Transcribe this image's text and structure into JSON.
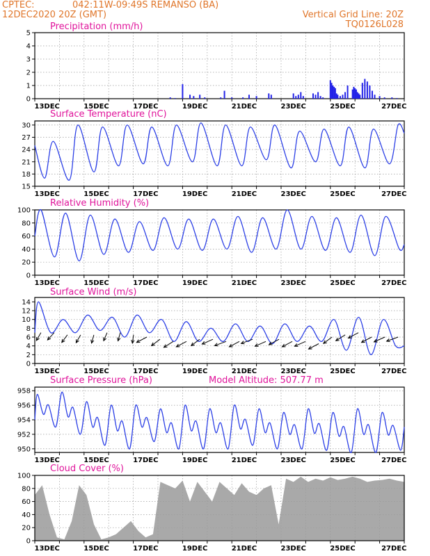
{
  "header": {
    "source": "CPTEC:",
    "location": "042:11W-09:49S  REMANSO (BA)",
    "run": "12DEC2020 20Z (GMT)",
    "grid_note": "Vertical Grid Line: 20Z",
    "model": "TQ0126L028"
  },
  "colors": {
    "header": "#e0762a",
    "panel_title": "#e0149b",
    "line": "#2b3fe6",
    "bar": "#2323e8",
    "cloud": "#a9a9a9"
  },
  "chart_data": [
    {
      "type": "bar",
      "id": "precipitation",
      "title": "Precipitation (mm/h)",
      "xlabel": "",
      "ylabel": "",
      "x_tick_labels": [
        "13DEC",
        "15DEC",
        "17DEC",
        "19DEC",
        "21DEC",
        "23DEC",
        "25DEC",
        "27DEC"
      ],
      "ylim": [
        0,
        5
      ],
      "y_ticks": [
        0,
        1,
        2,
        3,
        4,
        5
      ],
      "grid": true,
      "x_days": [
        5.5,
        5.7,
        6.0,
        6.3,
        6.45,
        6.7,
        6.9,
        7.55,
        7.7,
        8.0,
        8.45,
        8.7,
        9.0,
        9.5,
        9.6,
        10.5,
        10.6,
        10.7,
        10.8,
        10.9,
        11.3,
        11.4,
        11.5,
        11.6,
        11.7,
        12.0,
        12.05,
        12.1,
        12.15,
        12.2,
        12.25,
        12.3,
        12.4,
        12.5,
        12.6,
        12.7,
        12.9,
        12.95,
        13.0,
        13.05,
        13.1,
        13.15,
        13.2,
        13.3,
        13.4,
        13.5,
        13.6,
        13.7,
        13.8,
        14.0,
        14.2,
        14.5,
        14.7
      ],
      "values": [
        0.1,
        0.05,
        1.1,
        0.3,
        0.2,
        0.3,
        0.1,
        0.1,
        0.6,
        0.1,
        0.1,
        0.3,
        0.2,
        0.4,
        0.3,
        0.4,
        0.2,
        0.3,
        0.5,
        0.2,
        0.4,
        0.3,
        0.5,
        0.2,
        0.1,
        1.4,
        1.2,
        1.0,
        0.9,
        0.8,
        0.4,
        0.3,
        0.2,
        0.3,
        0.5,
        1.0,
        0.7,
        0.9,
        0.8,
        0.7,
        0.5,
        0.4,
        0.3,
        1.2,
        1.5,
        1.3,
        1.0,
        0.6,
        0.3,
        0.2,
        0.1,
        0.1,
        0.05
      ]
    },
    {
      "type": "line",
      "id": "temperature",
      "title": "Surface Temperature (nC)",
      "xlabel": "",
      "ylabel": "",
      "x_tick_labels": [
        "13DEC",
        "15DEC",
        "17DEC",
        "19DEC",
        "21DEC",
        "23DEC",
        "25DEC",
        "27DEC"
      ],
      "ylim": [
        15,
        31
      ],
      "y_ticks": [
        15,
        18,
        21,
        24,
        27,
        30
      ],
      "grid": true,
      "daily_max": [
        26.0,
        30.0,
        29.5,
        30.0,
        29.5,
        30.0,
        30.5,
        30.0,
        29.5,
        30.0,
        28.5,
        29.0,
        29.5,
        29.0,
        30.0,
        29.5
      ],
      "daily_min": [
        17.0,
        16.5,
        18.5,
        20.0,
        20.5,
        20.0,
        21.0,
        20.0,
        20.0,
        21.5,
        19.5,
        21.0,
        20.0,
        19.5,
        20.5,
        21.0
      ],
      "start_value": 25.0,
      "end_value": 28.0
    },
    {
      "type": "line",
      "id": "humidity",
      "title": "Relative Humidity (%)",
      "xlabel": "",
      "ylabel": "",
      "x_tick_labels": [
        "13DEC",
        "15DEC",
        "17DEC",
        "19DEC",
        "21DEC",
        "23DEC",
        "25DEC",
        "27DEC"
      ],
      "ylim": [
        0,
        100
      ],
      "y_ticks": [
        0,
        20,
        40,
        60,
        80,
        100
      ],
      "grid": true,
      "daily_max": [
        100,
        95,
        92,
        86,
        82,
        88,
        86,
        86,
        90,
        88,
        100,
        90,
        88,
        92,
        90
      ],
      "daily_min": [
        28,
        22,
        32,
        35,
        38,
        40,
        38,
        40,
        35,
        40,
        40,
        38,
        35,
        30,
        40
      ],
      "start_value": 60,
      "end_value": 47
    },
    {
      "type": "line",
      "id": "wind",
      "title": "Surface Wind (m/s)",
      "xlabel": "",
      "ylabel": "",
      "x_tick_labels": [
        "13DEC",
        "15DEC",
        "17DEC",
        "19DEC",
        "21DEC",
        "23DEC",
        "25DEC",
        "27DEC"
      ],
      "ylim": [
        0,
        15
      ],
      "y_ticks": [
        0,
        2,
        4,
        6,
        8,
        10,
        12,
        14
      ],
      "grid": true,
      "daily_max": [
        14,
        10,
        11,
        10.5,
        11,
        10,
        9.5,
        8,
        9,
        8.5,
        9,
        8.5,
        10,
        10.5,
        10
      ],
      "daily_min": [
        7,
        7,
        7.5,
        6,
        7,
        5,
        5,
        5,
        5,
        4.5,
        5,
        5,
        3,
        2,
        4
      ],
      "start_value": 7,
      "end_value": 4,
      "vectors": [
        [
          7,
          70
        ],
        [
          7,
          60
        ],
        [
          6.5,
          65
        ],
        [
          6.5,
          70
        ],
        [
          6.5,
          80
        ],
        [
          7,
          75
        ],
        [
          7,
          80
        ],
        [
          6.5,
          85
        ],
        [
          6,
          40
        ],
        [
          5.5,
          50
        ],
        [
          5,
          45
        ],
        [
          5,
          40
        ],
        [
          5.5,
          50
        ],
        [
          5.5,
          35
        ],
        [
          5,
          30
        ],
        [
          5,
          40
        ],
        [
          5.5,
          30
        ],
        [
          5,
          35
        ],
        [
          5.5,
          40
        ],
        [
          5,
          40
        ],
        [
          5,
          35
        ],
        [
          4.5,
          40
        ],
        [
          6,
          50
        ],
        [
          6.5,
          45
        ],
        [
          7,
          40
        ],
        [
          6,
          40
        ],
        [
          6,
          35
        ],
        [
          6,
          30
        ]
      ]
    },
    {
      "type": "line",
      "id": "pressure",
      "title": "Surface Pressure (hPa)",
      "annotation": "Model Altitude: 507.77 m",
      "xlabel": "",
      "ylabel": "",
      "x_tick_labels": [
        "13DEC",
        "15DEC",
        "17DEC",
        "19DEC",
        "21DEC",
        "23DEC",
        "25DEC",
        "27DEC"
      ],
      "ylim": [
        949.5,
        958.5
      ],
      "y_ticks": [
        950,
        952,
        954,
        956,
        958
      ],
      "grid": true,
      "daily_high": [
        957.5,
        957.8,
        956.5,
        956.0,
        956.0,
        955.5,
        956.0,
        955.5,
        956.0,
        955.5,
        955.0,
        955.5,
        955.0,
        955.5,
        955.0
      ],
      "daily_low": [
        953.0,
        952.0,
        950.5,
        950.0,
        951.0,
        950.0,
        950.0,
        950.0,
        950.5,
        950.0,
        950.0,
        949.8,
        949.5,
        949.5,
        949.8
      ],
      "start_value": 954.0,
      "end_value": 953.0
    },
    {
      "type": "area",
      "id": "cloud",
      "title": "Cloud Cover (%)",
      "xlabel": "",
      "ylabel": "",
      "x_tick_labels": [
        "13DEC",
        "15DEC",
        "17DEC",
        "19DEC",
        "21DEC",
        "23DEC",
        "25DEC",
        "27DEC"
      ],
      "ylim": [
        0,
        100
      ],
      "y_ticks": [
        0,
        20,
        40,
        60,
        80,
        100
      ],
      "grid": true,
      "x_days": [
        0,
        0.3,
        0.6,
        0.9,
        1.2,
        1.5,
        1.8,
        2.1,
        2.4,
        2.7,
        3.0,
        3.3,
        3.6,
        3.9,
        4.2,
        4.5,
        4.8,
        5.1,
        5.4,
        5.7,
        6.0,
        6.3,
        6.6,
        6.9,
        7.2,
        7.5,
        7.8,
        8.1,
        8.4,
        8.7,
        9.0,
        9.3,
        9.6,
        9.9,
        10.2,
        10.5,
        10.8,
        11.1,
        11.4,
        11.7,
        12.0,
        12.3,
        12.6,
        12.9,
        13.2,
        13.5,
        13.8,
        14.1,
        14.4,
        14.7,
        15.0
      ],
      "values": [
        70,
        85,
        40,
        5,
        2,
        30,
        85,
        70,
        25,
        2,
        5,
        10,
        20,
        30,
        15,
        5,
        10,
        90,
        85,
        80,
        92,
        60,
        90,
        75,
        60,
        90,
        80,
        70,
        88,
        75,
        70,
        80,
        85,
        25,
        95,
        90,
        98,
        90,
        95,
        92,
        97,
        93,
        95,
        98,
        95,
        90,
        92,
        93,
        95,
        92,
        90
      ]
    }
  ]
}
